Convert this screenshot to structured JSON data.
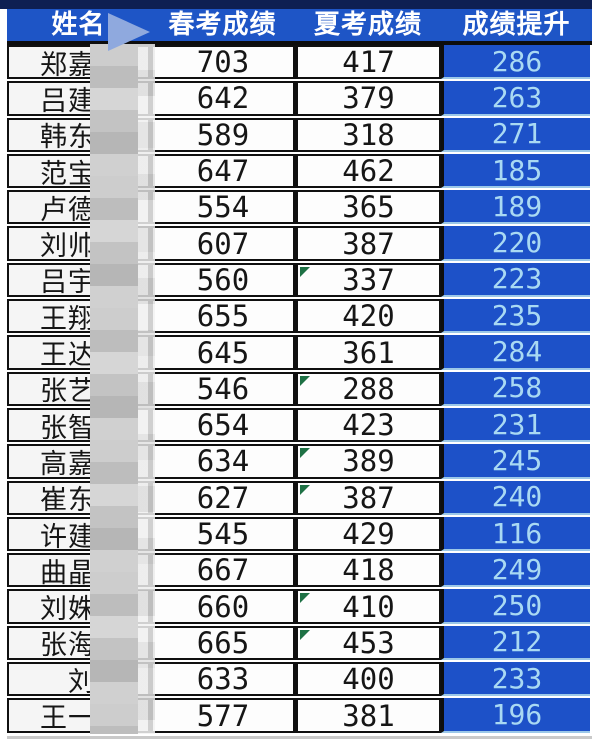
{
  "table": {
    "columns": [
      "姓名",
      "春考成绩",
      "夏考成绩",
      "成绩提升"
    ]
  },
  "rows": [
    {
      "name": "郑嘉",
      "spring": "703",
      "summer": "417",
      "gain": "286",
      "flag": false
    },
    {
      "name": "吕建",
      "spring": "642",
      "summer": "379",
      "gain": "263",
      "flag": false
    },
    {
      "name": "韩东",
      "spring": "589",
      "summer": "318",
      "gain": "271",
      "flag": false
    },
    {
      "name": "范宝",
      "spring": "647",
      "summer": "462",
      "gain": "185",
      "flag": false
    },
    {
      "name": "卢德",
      "spring": "554",
      "summer": "365",
      "gain": "189",
      "flag": false
    },
    {
      "name": "刘帅",
      "spring": "607",
      "summer": "387",
      "gain": "220",
      "flag": false
    },
    {
      "name": "吕宇",
      "spring": "560",
      "summer": "337",
      "gain": "223",
      "flag": true
    },
    {
      "name": "王翔",
      "spring": "655",
      "summer": "420",
      "gain": "235",
      "flag": false
    },
    {
      "name": "王达",
      "spring": "645",
      "summer": "361",
      "gain": "284",
      "flag": false
    },
    {
      "name": "张艺",
      "spring": "546",
      "summer": "288",
      "gain": "258",
      "flag": true
    },
    {
      "name": "张智",
      "spring": "654",
      "summer": "423",
      "gain": "231",
      "flag": false
    },
    {
      "name": "高嘉",
      "spring": "634",
      "summer": "389",
      "gain": "245",
      "flag": true
    },
    {
      "name": "崔东",
      "spring": "627",
      "summer": "387",
      "gain": "240",
      "flag": true
    },
    {
      "name": "许建",
      "spring": "545",
      "summer": "429",
      "gain": "116",
      "flag": false
    },
    {
      "name": "曲晶",
      "spring": "667",
      "summer": "418",
      "gain": "249",
      "flag": false
    },
    {
      "name": "刘姝",
      "spring": "660",
      "summer": "410",
      "gain": "250",
      "flag": true
    },
    {
      "name": "张海",
      "spring": "665",
      "summer": "453",
      "gain": "212",
      "flag": true
    },
    {
      "name": "刘",
      "spring": "633",
      "summer": "400",
      "gain": "233",
      "flag": false
    },
    {
      "name": "王一",
      "spring": "577",
      "summer": "381",
      "gain": "196",
      "flag": false
    }
  ],
  "colors": {
    "header_bg": "#1e55c6",
    "topbar_bg": "#0e1f52",
    "gain_cell_bg": "#1d51c8",
    "gain_text": "#a9d9f3",
    "flag_green": "#1e7145",
    "border_black": "#101010",
    "mosaic_grey": "#c6c6c6"
  }
}
